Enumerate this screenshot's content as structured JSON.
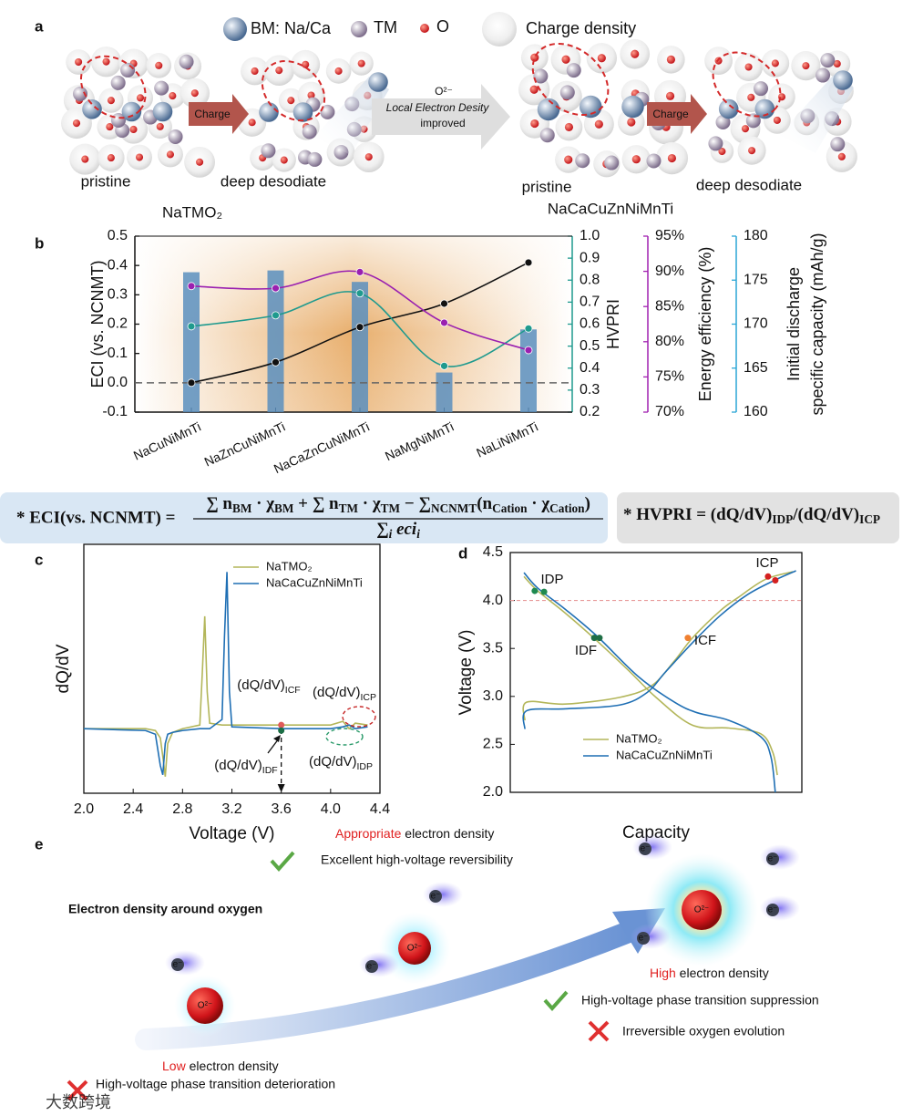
{
  "panel_labels": [
    "a",
    "b",
    "c",
    "d",
    "e"
  ],
  "panel_a": {
    "legend": [
      "BM: Na/Ca",
      "TM",
      "O",
      "Charge density"
    ],
    "charge_arrows": [
      "Charge",
      "Charge"
    ],
    "improve_arrow": [
      "O²⁻",
      "Local Electron Desity",
      "improved"
    ],
    "state_labels": [
      "pristine",
      "deep desodiate",
      "pristine",
      "deep desodiate"
    ],
    "materials": [
      "NaTMO₂",
      "NaCaCuZnNiMnTi"
    ]
  },
  "formulas": {
    "eci_left": "* ECI(vs. NCNMT) =",
    "eci_numerator": [
      {
        "t": "∑ n"
      },
      {
        "sub": "BM"
      },
      {
        "t": " · χ"
      },
      {
        "sub": "BM"
      },
      {
        "t": " + ∑ n"
      },
      {
        "sub": "TM"
      },
      {
        "t": " · χ"
      },
      {
        "sub": "TM"
      },
      {
        "t": " − ∑"
      },
      {
        "sub": "NCNMT"
      },
      {
        "t": "(n"
      },
      {
        "sub": "Cation"
      },
      {
        "t": " · χ"
      },
      {
        "sub": "Cation"
      },
      {
        "t": ")"
      }
    ],
    "eci_denominator": [
      {
        "t": "∑"
      },
      {
        "sub": "i"
      },
      {
        "t": " eci"
      },
      {
        "sub": "i"
      }
    ],
    "hvpri": [
      {
        "t": "* HVPRI = (dQ/dV)"
      },
      {
        "sub": "IDP"
      },
      {
        "t": "/(dQ/dV)"
      },
      {
        "sub": "ICP"
      }
    ]
  },
  "chart_data": [
    {
      "type": "combo",
      "categories": [
        "NaCuNiMnTi",
        "NaZnCuNiMnTi",
        "NaCaZnCuNiMnTi",
        "NaMgNiMnTi",
        "NaLiNiMnTi"
      ],
      "ylabel": "ECI (vs. NCNMT)",
      "ylim": [
        -0.1,
        0.5
      ],
      "yticks": [
        -0.1,
        {
          "value": 0,
          "label": "0.0"
        },
        0.1,
        0.2,
        0.3,
        0.4,
        0.5
      ],
      "y2label": "HVPRI",
      "y2lim": [
        0.2,
        1.0
      ],
      "y2ticks": [
        0.2,
        0.3,
        0.4,
        0.5,
        0.6,
        0.7,
        0.8,
        0.9,
        {
          "value": 1,
          "label": "1.0"
        }
      ],
      "y3label": "Energy efficiency (%)",
      "y3lim": [
        70,
        95
      ],
      "y3ticks": [
        {
          "value": 70,
          "label": "70%"
        },
        {
          "value": 75,
          "label": "75%"
        },
        {
          "value": 80,
          "label": "80%"
        },
        {
          "value": 85,
          "label": "85%"
        },
        {
          "value": 90,
          "label": "90%"
        },
        {
          "value": 95,
          "label": "95%"
        }
      ],
      "y4label": [
        "Initial discharge",
        "specific capacity (mAh/g)"
      ],
      "y4lim": [
        160,
        180
      ],
      "y4ticks": [
        160,
        165,
        170,
        175,
        180
      ],
      "background": "#e6a65d",
      "series": [
        {
          "type": "bar",
          "axis": "y4",
          "color": "#5a8fbe",
          "values": [
            175.9,
            176.1,
            174.8,
            164.5,
            169.4
          ]
        },
        {
          "type": "line",
          "axis": "y",
          "color": "#111111",
          "values": [
            0.0,
            0.07,
            0.19,
            0.27,
            0.41
          ]
        },
        {
          "type": "line",
          "axis": "y2",
          "color": "#1f9a8e",
          "values": [
            0.59,
            0.64,
            0.74,
            0.41,
            0.58
          ]
        },
        {
          "type": "line",
          "axis": "y3",
          "color": "#9a20b0",
          "values": [
            87.9,
            87.6,
            89.9,
            82.7,
            78.8
          ]
        }
      ]
    },
    {
      "type": "line",
      "xlabel": "Voltage (V)",
      "ylabel": "dQ/dV",
      "xlim": [
        2.0,
        4.4
      ],
      "xticks": [
        {
          "value": 2,
          "label": "2.0"
        },
        2.4,
        2.8,
        3.2,
        3.6,
        {
          "value": 4,
          "label": "4.0"
        },
        4.4
      ],
      "ylim": [
        -0.35,
        1.0
      ],
      "legend": "upper-center",
      "x": [
        2.0,
        2.5,
        2.58,
        2.62,
        2.64,
        2.66,
        2.68,
        2.72,
        2.8,
        2.94,
        2.96,
        2.98,
        3.0,
        3.02,
        3.12,
        3.14,
        3.16,
        3.18,
        3.2,
        3.6,
        4.0,
        4.1,
        4.15,
        4.2,
        4.3
      ],
      "series": [
        {
          "name": "NaTMO₂",
          "color": "#b3b65a",
          "values": [
            0.0,
            0.0,
            -0.01,
            -0.05,
            -0.15,
            -0.26,
            -0.08,
            -0.02,
            0.0,
            0.02,
            0.3,
            0.61,
            0.2,
            0.03,
            0.02,
            0.02,
            0.02,
            0.02,
            0.02,
            0.02,
            0.02,
            0.04,
            0.0,
            0.03,
            0.02
          ]
        },
        {
          "name": "NaCaCuZnNiMnTi",
          "color": "#1f6fb4",
          "values": [
            0.0,
            -0.01,
            -0.03,
            -0.2,
            -0.25,
            -0.08,
            -0.03,
            -0.02,
            -0.01,
            0.0,
            0.0,
            0.0,
            0.0,
            0.0,
            0.05,
            0.5,
            0.85,
            0.2,
            0.01,
            0.0,
            0.0,
            0.01,
            0.02,
            0.0,
            0.01
          ]
        }
      ],
      "annotations": [
        {
          "text": [
            {
              "t": "(dQ/dV)"
            },
            {
              "sub": "ICF"
            }
          ],
          "color": "#e05a5a",
          "x": 3.6,
          "y": 0.02
        },
        {
          "text": [
            {
              "t": "(dQ/dV)"
            },
            {
              "sub": "ICP"
            }
          ],
          "color": "#c62828"
        },
        {
          "text": [
            {
              "t": "(dQ/dV)"
            },
            {
              "sub": "IDF"
            }
          ],
          "color": "#1b6e45",
          "x": 3.6,
          "y": -0.01
        },
        {
          "text": [
            {
              "t": "(dQ/dV)"
            },
            {
              "sub": "IDP"
            }
          ],
          "color": "#2a9a6a"
        }
      ]
    },
    {
      "type": "line",
      "xlabel": "Capacity",
      "ylabel": "Voltage (V)",
      "xlim": [
        0,
        100
      ],
      "ylim": [
        2.0,
        4.5
      ],
      "yticks": [
        {
          "value": 2,
          "label": "2.0"
        },
        2.5,
        {
          "value": 3,
          "label": "3.0"
        },
        3.5,
        {
          "value": 4,
          "label": "4.0"
        },
        4.5
      ],
      "legend": "lower-center",
      "series": [
        {
          "name": "NaTMO₂",
          "color": "#b3b65a",
          "x": [
            4.7,
            9.4,
            18.8,
            29.7,
            40.6,
            50.0,
            62.5,
            75.0,
            85.9,
            90.0,
            91.6,
            null,
            5.0,
            5.6,
            18.8,
            37.5,
            48.4,
            56.3,
            62.5,
            71.9,
            78.1,
            87.5,
            96.9
          ],
          "values": [
            4.25,
            4.1,
            3.87,
            3.58,
            3.27,
            2.99,
            2.7,
            2.67,
            2.61,
            2.42,
            2.18,
            null,
            2.75,
            2.94,
            2.92,
            2.99,
            3.11,
            3.37,
            3.61,
            3.89,
            4.03,
            4.22,
            4.3
          ]
        },
        {
          "name": "NaCaCuZnNiMnTi",
          "color": "#1f6fb4",
          "x": [
            4.7,
            9.4,
            18.8,
            29.7,
            43.8,
            56.3,
            64.1,
            75.0,
            85.9,
            89.4,
            90.9,
            null,
            5.0,
            5.6,
            18.8,
            37.5,
            46.9,
            53.1,
            62.5,
            71.9,
            81.3,
            90.6,
            98.0
          ],
          "values": [
            4.29,
            4.13,
            3.91,
            3.63,
            3.21,
            2.94,
            2.83,
            2.75,
            2.58,
            2.37,
            2.0,
            null,
            2.66,
            2.85,
            2.87,
            2.91,
            3.04,
            3.25,
            3.56,
            3.84,
            4.06,
            4.21,
            4.31
          ]
        }
      ],
      "annotations": [
        {
          "text": "IDP",
          "color": "#1e8a50",
          "x": [
            8.4,
            11.6
          ],
          "y": [
            4.1,
            4.09
          ]
        },
        {
          "text": "IDF",
          "color": "#1e6e45",
          "x": [
            28.8,
            30.6
          ],
          "y": [
            3.61,
            3.61
          ]
        },
        {
          "text": "ICF",
          "color": "#f08030",
          "x": [
            60.9
          ],
          "y": [
            3.61
          ]
        },
        {
          "text": "ICP",
          "color": "#d42020",
          "x": [
            88.4,
            90.9
          ],
          "y": [
            4.25,
            4.21
          ]
        }
      ]
    }
  ],
  "panel_e": {
    "top": {
      "highlight": "Appropriate",
      "rest": " electron density"
    },
    "top_good": "Excellent high-voltage  reversibility",
    "heading": "Electron density around oxygen",
    "right": {
      "highlight": "High",
      "rest": " electron density"
    },
    "right_good": "High-voltage phase transition suppression",
    "right_bad": "Irreversible oxygen evolution",
    "left": {
      "highlight": "Low",
      "rest": " electron density"
    },
    "left_bad": "High-voltage phase transition deterioration",
    "electrons": [
      "e⁻",
      "e⁻",
      "e⁻",
      "e⁻",
      "e⁻",
      "e⁻",
      "e⁻"
    ],
    "oxygens": [
      "O²⁻",
      "O²⁻",
      "O²⁻"
    ],
    "watermark": "大数跨境"
  }
}
